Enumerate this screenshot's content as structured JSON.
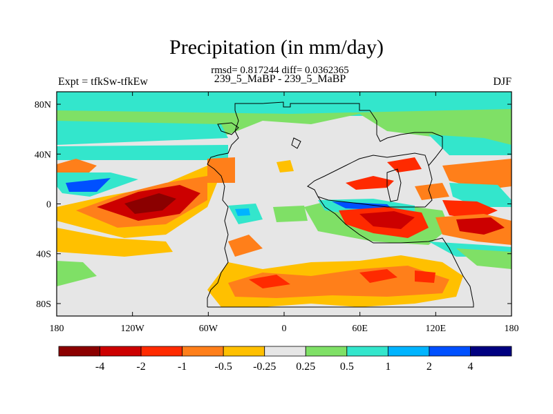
{
  "title": "Precipitation (in mm/day)",
  "subtitle": "rmsd= 0.817244 diff= 0.0362365",
  "left_string": "Expt = tfkSw-tfkEw",
  "center_string": "239_5_MaBP - 239_5_MaBP",
  "right_string": "DJF",
  "map": {
    "lon_ticks": [
      {
        "value": -180,
        "label": "180"
      },
      {
        "value": -120,
        "label": "120W"
      },
      {
        "value": -60,
        "label": "60W"
      },
      {
        "value": 0,
        "label": "0"
      },
      {
        "value": 60,
        "label": "60E"
      },
      {
        "value": 120,
        "label": "120E"
      },
      {
        "value": 180,
        "label": "180"
      }
    ],
    "lat_ticks": [
      {
        "value": 80,
        "label": "80N"
      },
      {
        "value": 40,
        "label": "40N"
      },
      {
        "value": 0,
        "label": "0"
      },
      {
        "value": -40,
        "label": "40S"
      },
      {
        "value": -80,
        "label": "80S"
      }
    ],
    "lon_range": [
      -180,
      180
    ],
    "lat_range": [
      -90,
      90
    ]
  },
  "colorbar": {
    "labels": [
      "-4",
      "-2",
      "-1",
      "-0.5",
      "-0.25",
      "0.25",
      "0.5",
      "1",
      "2",
      "4"
    ],
    "colors": [
      "#8b0000",
      "#cc0000",
      "#ff2a00",
      "#ff7f1a",
      "#ffc000",
      "#e6e6e6",
      "#7fe066",
      "#33e6cc",
      "#00b4ff",
      "#0050ff",
      "#000080"
    ]
  }
}
